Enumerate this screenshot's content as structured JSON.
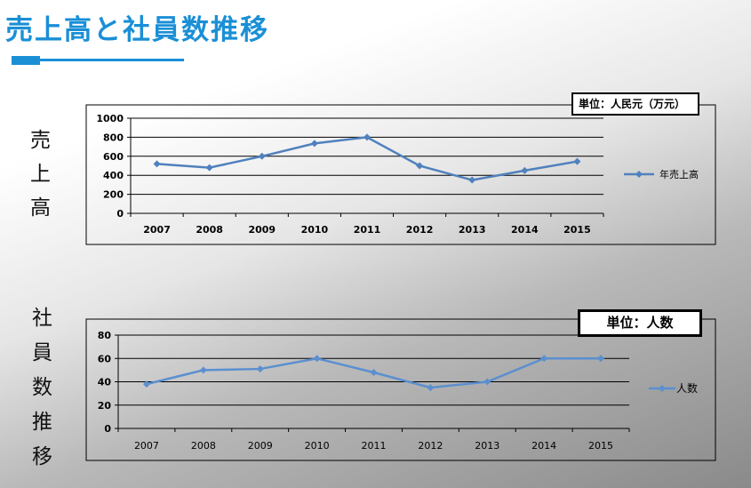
{
  "header": {
    "title": "売上高と社員数推移",
    "colors": {
      "accent": "#1a8fd6"
    }
  },
  "side_labels": {
    "sales": [
      "売",
      "上",
      "高"
    ],
    "employees": [
      "社",
      "員",
      "数",
      "推",
      "移"
    ]
  },
  "chart_data": [
    {
      "type": "line",
      "unit_label": "単位：人民元（万元）",
      "categories": [
        "2007",
        "2008",
        "2009",
        "2010",
        "2011",
        "2012",
        "2013",
        "2014",
        "2015"
      ],
      "series": [
        {
          "name": "年売上高",
          "values": [
            520,
            480,
            600,
            735,
            800,
            500,
            350,
            450,
            545
          ],
          "color": "#4f81bd"
        }
      ],
      "ylim": [
        0,
        1000
      ],
      "yticks": [
        0,
        200,
        400,
        600,
        800,
        1000
      ],
      "grid": true,
      "legend": "right"
    },
    {
      "type": "line",
      "unit_label": "単位：人数",
      "categories": [
        "2007",
        "2008",
        "2009",
        "2010",
        "2011",
        "2012",
        "2013",
        "2014",
        "2015"
      ],
      "series": [
        {
          "name": "人数",
          "values": [
            38,
            50,
            51,
            60,
            48,
            35,
            40,
            60,
            60
          ],
          "color": "#5b8fd0"
        }
      ],
      "ylim": [
        0,
        80
      ],
      "yticks": [
        0,
        20,
        40,
        60,
        80
      ],
      "grid": true,
      "legend": "right"
    }
  ]
}
